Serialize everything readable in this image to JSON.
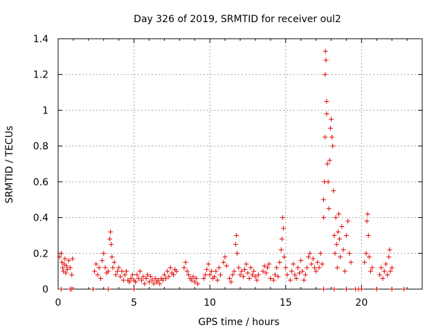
{
  "chart_data": {
    "type": "scatter",
    "title": "Day 326 of 2019, SRMTID for receiver oul2",
    "xlabel": "GPS time / hours",
    "ylabel": "SRMTID / TECUs",
    "xlim": [
      0,
      24
    ],
    "ylim": [
      0,
      1.4
    ],
    "xticks": [
      0,
      5,
      10,
      15,
      20
    ],
    "xtick_labels": [
      "0",
      "5",
      "10",
      "15",
      "20"
    ],
    "yticks": [
      0,
      0.2,
      0.4,
      0.6,
      0.8,
      1,
      1.2,
      1.4
    ],
    "ytick_labels": [
      "0",
      "0.2",
      "0.4",
      "0.6",
      "0.8",
      "1",
      "1.2",
      "1.4"
    ],
    "grid": true,
    "marker": "+",
    "color": "#e00000",
    "series": [
      {
        "name": "SRMTID",
        "points": [
          [
            0.1,
            0.18
          ],
          [
            0.2,
            0.2
          ],
          [
            0.25,
            0.15
          ],
          [
            0.3,
            0.12
          ],
          [
            0.35,
            0.1
          ],
          [
            0.4,
            0.14
          ],
          [
            0.45,
            0.17
          ],
          [
            0.5,
            0.09
          ],
          [
            0.55,
            0.13
          ],
          [
            0.6,
            0.11
          ],
          [
            0.7,
            0.16
          ],
          [
            0.8,
            0.12
          ],
          [
            0.9,
            0.08
          ],
          [
            0.95,
            0.17
          ],
          [
            0.2,
            0.0
          ],
          [
            0.8,
            0.0
          ],
          [
            0.9,
            0.0
          ],
          [
            2.3,
            0.0
          ],
          [
            3.3,
            0.0
          ],
          [
            5.0,
            0.0
          ],
          [
            2.4,
            0.1
          ],
          [
            2.5,
            0.14
          ],
          [
            2.6,
            0.08
          ],
          [
            2.7,
            0.12
          ],
          [
            2.8,
            0.06
          ],
          [
            2.9,
            0.16
          ],
          [
            3.0,
            0.2
          ],
          [
            3.1,
            0.12
          ],
          [
            3.2,
            0.09
          ],
          [
            3.3,
            0.1
          ],
          [
            3.4,
            0.28
          ],
          [
            3.45,
            0.32
          ],
          [
            3.5,
            0.25
          ],
          [
            3.55,
            0.18
          ],
          [
            3.6,
            0.12
          ],
          [
            3.7,
            0.15
          ],
          [
            3.8,
            0.08
          ],
          [
            3.9,
            0.1
          ],
          [
            4.0,
            0.12
          ],
          [
            4.1,
            0.07
          ],
          [
            4.2,
            0.1
          ],
          [
            4.3,
            0.05
          ],
          [
            4.4,
            0.08
          ],
          [
            4.5,
            0.1
          ],
          [
            4.6,
            0.05
          ],
          [
            4.7,
            0.04
          ],
          [
            4.8,
            0.06
          ],
          [
            4.9,
            0.08
          ],
          [
            5.0,
            0.05
          ],
          [
            5.1,
            0.04
          ],
          [
            5.2,
            0.08
          ],
          [
            5.3,
            0.06
          ],
          [
            5.4,
            0.1
          ],
          [
            5.5,
            0.05
          ],
          [
            5.6,
            0.07
          ],
          [
            5.7,
            0.03
          ],
          [
            5.8,
            0.06
          ],
          [
            5.9,
            0.08
          ],
          [
            6.0,
            0.04
          ],
          [
            6.1,
            0.07
          ],
          [
            6.2,
            0.05
          ],
          [
            6.3,
            0.03
          ],
          [
            6.4,
            0.06
          ],
          [
            6.5,
            0.04
          ],
          [
            6.6,
            0.05
          ],
          [
            6.7,
            0.03
          ],
          [
            6.8,
            0.06
          ],
          [
            6.9,
            0.05
          ],
          [
            7.0,
            0.08
          ],
          [
            7.1,
            0.06
          ],
          [
            7.2,
            0.1
          ],
          [
            7.3,
            0.07
          ],
          [
            7.4,
            0.12
          ],
          [
            7.5,
            0.09
          ],
          [
            7.6,
            0.08
          ],
          [
            7.7,
            0.11
          ],
          [
            7.8,
            0.1
          ],
          [
            8.3,
            0.12
          ],
          [
            8.4,
            0.15
          ],
          [
            8.5,
            0.1
          ],
          [
            8.6,
            0.08
          ],
          [
            8.7,
            0.06
          ],
          [
            8.8,
            0.05
          ],
          [
            8.9,
            0.07
          ],
          [
            9.0,
            0.04
          ],
          [
            9.1,
            0.06
          ],
          [
            9.2,
            0.03
          ],
          [
            9.6,
            0.06
          ],
          [
            9.7,
            0.08
          ],
          [
            9.8,
            0.11
          ],
          [
            9.9,
            0.14
          ],
          [
            10.0,
            0.08
          ],
          [
            10.1,
            0.1
          ],
          [
            10.2,
            0.06
          ],
          [
            10.3,
            0.07
          ],
          [
            10.4,
            0.1
          ],
          [
            10.5,
            0.05
          ],
          [
            10.6,
            0.12
          ],
          [
            10.7,
            0.08
          ],
          [
            10.9,
            0.15
          ],
          [
            11.0,
            0.18
          ],
          [
            11.1,
            0.13
          ],
          [
            11.3,
            0.06
          ],
          [
            11.4,
            0.04
          ],
          [
            11.5,
            0.08
          ],
          [
            11.6,
            0.1
          ],
          [
            11.7,
            0.25
          ],
          [
            11.75,
            0.3
          ],
          [
            11.8,
            0.2
          ],
          [
            11.9,
            0.12
          ],
          [
            12.0,
            0.08
          ],
          [
            12.1,
            0.1
          ],
          [
            12.2,
            0.07
          ],
          [
            12.3,
            0.11
          ],
          [
            12.4,
            0.14
          ],
          [
            12.5,
            0.09
          ],
          [
            12.6,
            0.06
          ],
          [
            12.7,
            0.12
          ],
          [
            12.8,
            0.08
          ],
          [
            12.9,
            0.1
          ],
          [
            13.0,
            0.07
          ],
          [
            13.1,
            0.05
          ],
          [
            13.2,
            0.08
          ],
          [
            13.5,
            0.1
          ],
          [
            13.6,
            0.13
          ],
          [
            13.7,
            0.09
          ],
          [
            13.8,
            0.12
          ],
          [
            13.9,
            0.14
          ],
          [
            14.0,
            0.06
          ],
          [
            14.2,
            0.05
          ],
          [
            14.3,
            0.08
          ],
          [
            14.4,
            0.12
          ],
          [
            14.5,
            0.07
          ],
          [
            14.6,
            0.15
          ],
          [
            14.7,
            0.22
          ],
          [
            14.75,
            0.28
          ],
          [
            14.8,
            0.4
          ],
          [
            14.85,
            0.34
          ],
          [
            14.9,
            0.18
          ],
          [
            15.0,
            0.12
          ],
          [
            15.1,
            0.08
          ],
          [
            15.3,
            0.05
          ],
          [
            15.4,
            0.1
          ],
          [
            15.5,
            0.14
          ],
          [
            15.6,
            0.08
          ],
          [
            15.7,
            0.06
          ],
          [
            15.8,
            0.12
          ],
          [
            15.9,
            0.09
          ],
          [
            16.0,
            0.16
          ],
          [
            16.1,
            0.1
          ],
          [
            16.2,
            0.05
          ],
          [
            16.3,
            0.08
          ],
          [
            16.4,
            0.12
          ],
          [
            16.5,
            0.18
          ],
          [
            16.6,
            0.2
          ],
          [
            16.7,
            0.14
          ],
          [
            16.8,
            0.17
          ],
          [
            16.9,
            0.12
          ],
          [
            17.0,
            0.1
          ],
          [
            17.1,
            0.15
          ],
          [
            17.2,
            0.12
          ],
          [
            17.3,
            0.2
          ],
          [
            17.4,
            0.14
          ],
          [
            17.5,
            0.4
          ],
          [
            17.5,
            0.5
          ],
          [
            17.55,
            0.6
          ],
          [
            17.6,
            0.85
          ],
          [
            17.6,
            1.2
          ],
          [
            17.62,
            1.33
          ],
          [
            17.65,
            1.28
          ],
          [
            17.7,
            0.98
          ],
          [
            17.7,
            1.05
          ],
          [
            17.75,
            0.7
          ],
          [
            17.8,
            0.6
          ],
          [
            17.85,
            0.45
          ],
          [
            17.9,
            0.72
          ],
          [
            17.95,
            0.9
          ],
          [
            18.0,
            0.95
          ],
          [
            18.05,
            0.85
          ],
          [
            18.1,
            0.8
          ],
          [
            18.15,
            0.55
          ],
          [
            18.2,
            0.3
          ],
          [
            18.25,
            0.2
          ],
          [
            18.3,
            0.4
          ],
          [
            18.35,
            0.25
          ],
          [
            18.4,
            0.12
          ],
          [
            18.45,
            0.32
          ],
          [
            18.5,
            0.42
          ],
          [
            18.55,
            0.28
          ],
          [
            18.6,
            0.18
          ],
          [
            18.7,
            0.35
          ],
          [
            18.8,
            0.22
          ],
          [
            18.9,
            0.1
          ],
          [
            19.0,
            0.3
          ],
          [
            19.1,
            0.38
          ],
          [
            19.2,
            0.2
          ],
          [
            19.3,
            0.15
          ],
          [
            17.5,
            0.0
          ],
          [
            18.2,
            0.0
          ],
          [
            19.0,
            0.0
          ],
          [
            19.6,
            0.0
          ],
          [
            19.8,
            0.0
          ],
          [
            20.0,
            0.0
          ],
          [
            21.0,
            0.0
          ],
          [
            22.0,
            0.0
          ],
          [
            22.8,
            0.0
          ],
          [
            20.2,
            0.15
          ],
          [
            20.3,
            0.2
          ],
          [
            20.35,
            0.38
          ],
          [
            20.4,
            0.42
          ],
          [
            20.45,
            0.3
          ],
          [
            20.5,
            0.18
          ],
          [
            20.6,
            0.1
          ],
          [
            20.7,
            0.12
          ],
          [
            21.2,
            0.08
          ],
          [
            21.3,
            0.12
          ],
          [
            21.4,
            0.06
          ],
          [
            21.5,
            0.1
          ],
          [
            21.6,
            0.14
          ],
          [
            21.7,
            0.08
          ],
          [
            21.8,
            0.18
          ],
          [
            21.85,
            0.22
          ],
          [
            21.9,
            0.1
          ],
          [
            22.0,
            0.12
          ]
        ]
      }
    ]
  }
}
